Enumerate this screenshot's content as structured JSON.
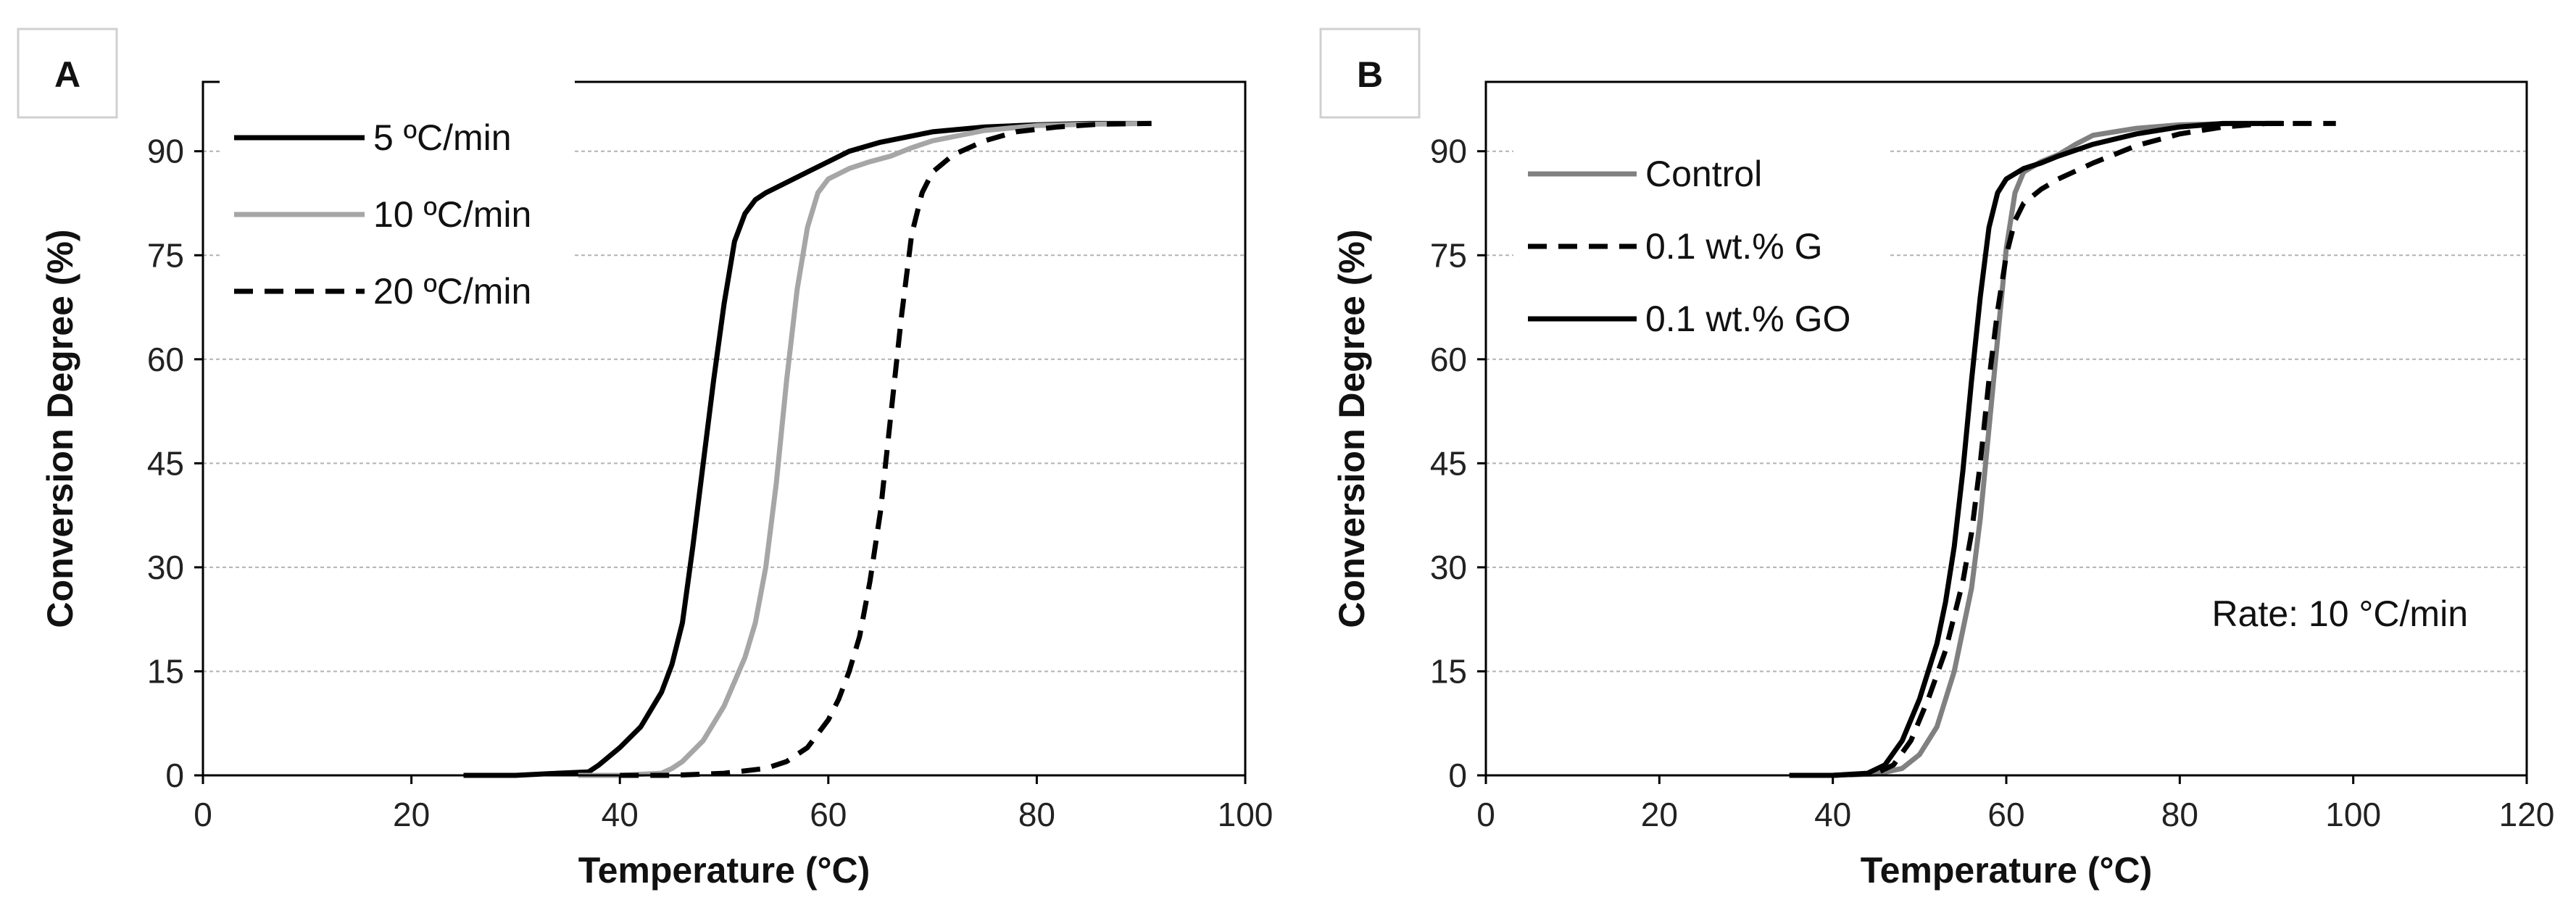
{
  "chart_data": [
    {
      "type": "line",
      "panel_label": "A",
      "title": "",
      "xlabel": "Temperature (°C)",
      "ylabel": "Conversion Degree (%)",
      "xlim": [
        0,
        100
      ],
      "ylim": [
        0,
        100
      ],
      "xticks": [
        0,
        20,
        40,
        60,
        80,
        100
      ],
      "yticks": [
        0,
        15,
        30,
        45,
        60,
        75,
        90
      ],
      "grid": "horizontal",
      "legend_position": "top-left",
      "series": [
        {
          "name": "5 ºC/min",
          "color": "#000000",
          "style": "solid",
          "x": [
            25,
            30,
            34,
            37,
            38,
            40,
            42,
            44,
            45,
            46,
            47,
            48,
            49,
            50,
            51,
            52,
            53,
            54,
            56,
            58,
            60,
            62,
            65,
            70,
            75,
            80,
            85,
            91
          ],
          "y": [
            0,
            0,
            0.3,
            0.5,
            1.5,
            4,
            7,
            12,
            16,
            22,
            33,
            45,
            57,
            68,
            77,
            81,
            83,
            84,
            85.5,
            87,
            88.5,
            90,
            91.3,
            92.8,
            93.5,
            93.8,
            94,
            94
          ]
        },
        {
          "name": "10 ºC/min",
          "color": "#a6a6a6",
          "style": "solid",
          "x": [
            36,
            40,
            44,
            45,
            46,
            48,
            50,
            52,
            53,
            54,
            55,
            56,
            57,
            58,
            59,
            60,
            62,
            64,
            66,
            68,
            70,
            75,
            80,
            85,
            91
          ],
          "y": [
            0,
            0,
            0.3,
            1,
            2,
            5,
            10,
            17,
            22,
            30,
            42,
            57,
            70,
            79,
            84,
            86,
            87.5,
            88.5,
            89.3,
            90.5,
            91.5,
            93,
            93.7,
            93.9,
            94
          ]
        },
        {
          "name": "20 ºC/min",
          "color": "#000000",
          "style": "dashed",
          "x": [
            40,
            45,
            50,
            54,
            56,
            58,
            59,
            60,
            61,
            62,
            63,
            64,
            65,
            66,
            67,
            68,
            69,
            70,
            72,
            75,
            78,
            82,
            86,
            91
          ],
          "y": [
            0,
            0,
            0.3,
            1,
            2,
            4,
            6,
            8,
            11,
            15,
            20,
            28,
            38,
            52,
            66,
            78,
            84,
            87,
            89.5,
            91.5,
            92.8,
            93.5,
            93.9,
            94
          ]
        }
      ]
    },
    {
      "type": "line",
      "panel_label": "B",
      "title": "",
      "xlabel": "Temperature (°C)",
      "ylabel": "Conversion Degree (%)",
      "xlim": [
        0,
        120
      ],
      "ylim": [
        0,
        100
      ],
      "xticks": [
        0,
        20,
        40,
        60,
        80,
        100,
        120
      ],
      "yticks": [
        0,
        15,
        30,
        45,
        60,
        75,
        90
      ],
      "grid": "horizontal",
      "legend_position": "top-left",
      "annotation": "Rate: 10 °C/min",
      "series": [
        {
          "name": "Control",
          "color": "#808080",
          "style": "solid",
          "x": [
            35,
            40,
            45,
            48,
            50,
            52,
            54,
            56,
            57,
            58,
            59,
            60,
            61,
            62,
            64,
            66,
            68,
            70,
            75,
            80,
            86,
            92
          ],
          "y": [
            0,
            0,
            0.2,
            1,
            3,
            7,
            15,
            27,
            37,
            50,
            63,
            76,
            84,
            87,
            88.5,
            89.5,
            91,
            92.3,
            93.3,
            93.8,
            94,
            94
          ]
        },
        {
          "name": "0.1 wt.% G",
          "color": "#000000",
          "style": "dashed",
          "x": [
            35,
            40,
            45,
            47,
            49,
            51,
            53,
            55,
            56,
            57,
            58,
            59,
            60,
            61,
            62,
            64,
            66,
            70,
            75,
            80,
            85,
            90,
            98
          ],
          "y": [
            0,
            0,
            0.3,
            1.5,
            5,
            11,
            18,
            28,
            35,
            45,
            57,
            67,
            75,
            80,
            82.5,
            84.5,
            86,
            88.3,
            90.8,
            92.5,
            93.5,
            94,
            94
          ]
        },
        {
          "name": "0.1 wt.% GO",
          "color": "#000000",
          "style": "solid",
          "x": [
            35,
            40,
            44,
            46,
            48,
            50,
            52,
            53,
            54,
            55,
            56,
            57,
            58,
            59,
            60,
            62,
            64,
            66,
            70,
            75,
            80,
            85,
            92
          ],
          "y": [
            0,
            0,
            0.3,
            1.5,
            5,
            11,
            19,
            25,
            33,
            44,
            57,
            69,
            79,
            84,
            86,
            87.5,
            88.3,
            89.3,
            91,
            92.5,
            93.5,
            94,
            94
          ]
        }
      ]
    }
  ]
}
